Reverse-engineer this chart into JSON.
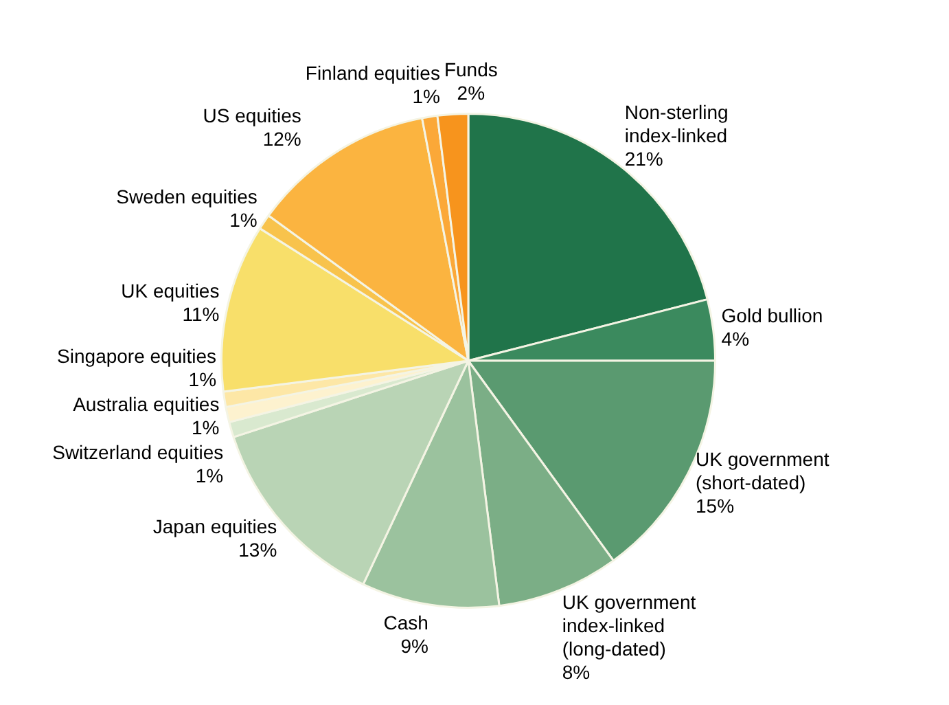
{
  "chart_data": {
    "type": "pie",
    "categories": [
      "Non-sterling index-linked",
      "Gold bullion",
      "UK government (short-dated)",
      "UK government index-linked (long-dated)",
      "Cash",
      "Japan equities",
      "Switzerland equities",
      "Australia equities",
      "Singapore equities",
      "UK equities",
      "Sweden equities",
      "US equities",
      "Finland equities",
      "Funds"
    ],
    "values": [
      21,
      4,
      15,
      8,
      9,
      13,
      1,
      1,
      1,
      11,
      1,
      12,
      1,
      2
    ],
    "colors": [
      "#20744a",
      "#3b8a5e",
      "#5a9a70",
      "#7bae86",
      "#9bc29e",
      "#b9d4b5",
      "#d9e9cf",
      "#fdf2cf",
      "#fde7a6",
      "#f8df6a",
      "#f8c34c",
      "#fbb440",
      "#fba838",
      "#f7941d"
    ],
    "value_labels": [
      "21%",
      "4%",
      "15%",
      "8%",
      "9%",
      "13%",
      "1%",
      "1%",
      "1%",
      "11%",
      "1%",
      "12%",
      "1%",
      "2%"
    ],
    "legend": false
  }
}
